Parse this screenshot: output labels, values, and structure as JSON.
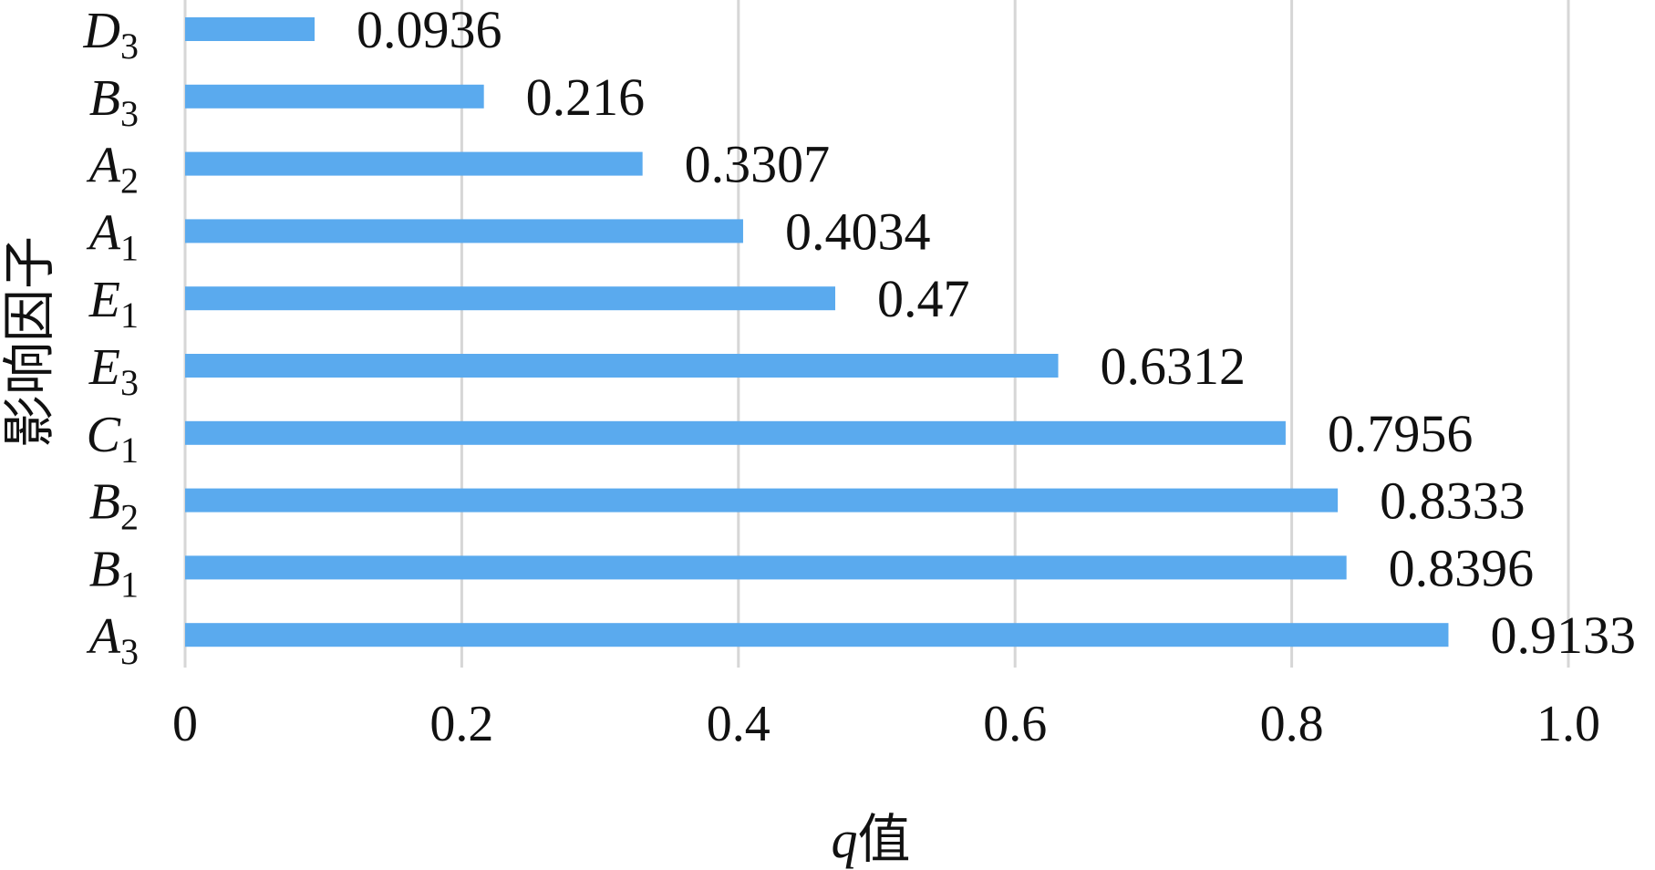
{
  "chart_data": {
    "type": "bar",
    "orientation": "horizontal",
    "categories": [
      {
        "letter": "D",
        "sub": "3"
      },
      {
        "letter": "B",
        "sub": "3"
      },
      {
        "letter": "A",
        "sub": "2"
      },
      {
        "letter": "A",
        "sub": "1"
      },
      {
        "letter": "E",
        "sub": "1"
      },
      {
        "letter": "E",
        "sub": "3"
      },
      {
        "letter": "C",
        "sub": "1"
      },
      {
        "letter": "B",
        "sub": "2"
      },
      {
        "letter": "B",
        "sub": "1"
      },
      {
        "letter": "A",
        "sub": "3"
      }
    ],
    "values": [
      0.0936,
      0.216,
      0.3307,
      0.4034,
      0.47,
      0.6312,
      0.7956,
      0.8333,
      0.8396,
      0.9133
    ],
    "value_labels": [
      "0.0936",
      "0.216",
      "0.3307",
      "0.4034",
      "0.47",
      "0.6312",
      "0.7956",
      "0.8333",
      "0.8396",
      "0.9133"
    ],
    "xlim": [
      0,
      1.0
    ],
    "xticks": [
      0,
      0.2,
      0.4,
      0.6,
      0.8,
      1.0
    ],
    "xtick_labels": [
      "0",
      "0.2",
      "0.4",
      "0.6",
      "0.8",
      "1.0"
    ],
    "xlabel": {
      "var": "q",
      "text": "值"
    },
    "ylabel": "影响因子",
    "bar_color": "#5aaaee",
    "grid": true
  }
}
